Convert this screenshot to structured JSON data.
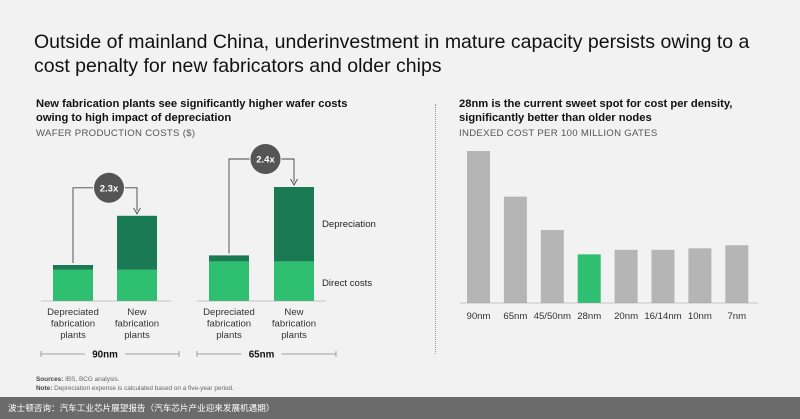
{
  "header": {
    "title": "Outside of mainland China, underinvestment in mature capacity persists owing to a cost penalty for new fabricators and older chips"
  },
  "left_panel": {
    "title": "New fabrication plants see significantly higher wafer costs owing to high impact of depreciation",
    "subtitle": "WAFER PRODUCTION COSTS ($)"
  },
  "right_panel": {
    "title": "28nm is the current sweet spot for cost per density, significantly better than older nodes",
    "subtitle": "INDEXED COST PER 100 MILLION GATES"
  },
  "chart_data": [
    {
      "type": "bar",
      "stacked": true,
      "groups": [
        "90nm",
        "65nm"
      ],
      "categories": [
        "Depreciated fabrication plants",
        "New fabrication plants"
      ],
      "series": [
        {
          "name": "Direct costs",
          "values": [
            [
              26,
              26
            ],
            [
              33,
              33
            ]
          ]
        },
        {
          "name": "Depreciation",
          "values": [
            [
              4,
              45
            ],
            [
              5,
              62
            ]
          ]
        }
      ],
      "multipliers": [
        "2.3x",
        "2.4x"
      ],
      "legend": "right",
      "colors": {
        "Direct costs": "#2fbf71",
        "Depreciation": "#1a7a54"
      }
    },
    {
      "type": "bar",
      "categories": [
        "90nm",
        "65nm",
        "45/50nm",
        "28nm",
        "20nm",
        "16/14nm",
        "10nm",
        "7nm"
      ],
      "values": [
        100,
        70,
        48,
        32,
        35,
        35,
        36,
        38
      ],
      "highlight": "28nm",
      "colors": {
        "default": "#b5b5b5",
        "highlight": "#2fbf71"
      }
    }
  ],
  "footer": {
    "sources_label": "Sources:",
    "sources_text": "IBS, BCG analysis.",
    "note_label": "Note:",
    "note_text": "Depreciation expense is calculated based on a five-year period.",
    "watermark": "波士顿咨询：汽车工业芯片展望报告（汽车芯片产业迎来发展机遇期）"
  }
}
